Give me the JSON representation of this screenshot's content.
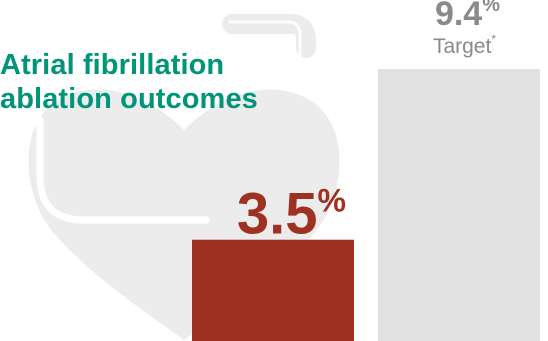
{
  "chart_data": {
    "type": "bar",
    "title": "Atrial fibrillation ablation outcomes",
    "title_lines": [
      "Atrial fibrillation",
      "ablation outcomes"
    ],
    "value_unit": "%",
    "ylim": [
      0,
      10
    ],
    "grid": false,
    "categories": [
      "",
      "Target"
    ],
    "category_marks": [
      "",
      "*"
    ],
    "values": [
      3.5,
      9.4
    ],
    "value_labels": [
      "3.5",
      "9.4"
    ],
    "colors": {
      "ours": "#9e3121",
      "target": "#e1e1e1",
      "title": "#00957a",
      "target_text": "#8a8a8a",
      "art": "#ececec"
    }
  }
}
